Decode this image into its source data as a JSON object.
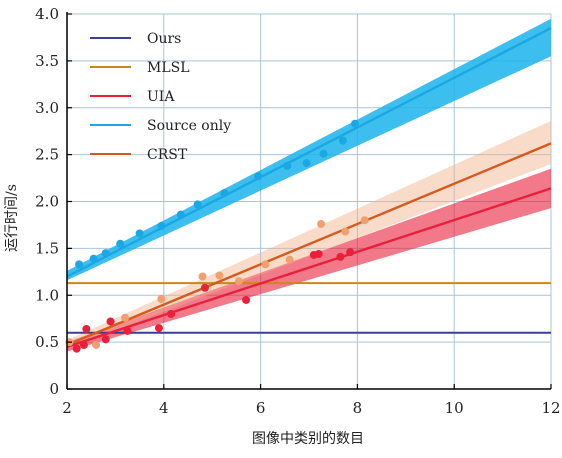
{
  "chart_data": {
    "type": "line",
    "xlabel": "图像中类别的数目",
    "ylabel": "运行时间/s",
    "xlim": [
      2,
      12
    ],
    "ylim": [
      0,
      4.0
    ],
    "x_ticks": [
      2,
      4,
      6,
      8,
      10,
      12
    ],
    "y_ticks": [
      0,
      0.5,
      1.0,
      1.5,
      2.0,
      2.5,
      3.0,
      3.5,
      4.0
    ],
    "x_tick_labels": [
      "2",
      "4",
      "6",
      "8",
      "10",
      "12"
    ],
    "y_tick_labels": [
      "0",
      "0.5",
      "1.0",
      "1.5",
      "2.0",
      "2.5",
      "3.0",
      "3.5",
      "4.0"
    ],
    "grid": true,
    "legend_position": "top-left",
    "series": [
      {
        "name": "Ours",
        "kind": "constant",
        "color": "#3a3f9a",
        "x": [
          2,
          12
        ],
        "y": [
          0.6,
          0.6
        ]
      },
      {
        "name": "MLSL",
        "kind": "constant",
        "color": "#c8881e",
        "x": [
          2,
          12
        ],
        "y": [
          1.13,
          1.13
        ]
      },
      {
        "name": "UIA",
        "kind": "regression",
        "color": "#e8203a",
        "band_color": "#e8203a",
        "fit": {
          "x": [
            2,
            12
          ],
          "y": [
            0.45,
            2.14
          ]
        },
        "band_upper": {
          "x": [
            2,
            12
          ],
          "y": [
            0.5,
            2.35
          ]
        },
        "band_lower": {
          "x": [
            2,
            12
          ],
          "y": [
            0.4,
            1.93
          ]
        },
        "points": {
          "x": [
            2.2,
            2.35,
            2.4,
            2.8,
            2.9,
            3.25,
            3.9,
            4.15,
            4.85,
            5.7,
            7.1,
            7.2,
            7.65,
            7.85
          ],
          "y": [
            0.43,
            0.47,
            0.64,
            0.53,
            0.72,
            0.62,
            0.65,
            0.8,
            1.08,
            0.95,
            1.43,
            1.44,
            1.41,
            1.46
          ]
        }
      },
      {
        "name": "Source only",
        "kind": "regression",
        "color": "#1aa8e4",
        "band_color": "#1ab4ec",
        "fit": {
          "x": [
            2,
            12
          ],
          "y": [
            1.2,
            3.85
          ]
        },
        "band_upper": {
          "x": [
            2,
            12
          ],
          "y": [
            1.26,
            3.95
          ]
        },
        "band_lower": {
          "x": [
            2,
            12
          ],
          "y": [
            1.16,
            3.55
          ]
        },
        "points": {
          "x": [
            2.25,
            2.55,
            2.8,
            3.1,
            3.5,
            3.95,
            4.35,
            4.7,
            5.25,
            5.95,
            6.55,
            6.95,
            7.3,
            7.7,
            7.95
          ],
          "y": [
            1.33,
            1.39,
            1.45,
            1.55,
            1.66,
            1.74,
            1.86,
            1.97,
            2.09,
            2.27,
            2.38,
            2.41,
            2.51,
            2.65,
            2.83
          ]
        }
      },
      {
        "name": "CRST",
        "kind": "regression",
        "color": "#d45a1e",
        "band_color": "#f2b08a",
        "fit": {
          "x": [
            2,
            12
          ],
          "y": [
            0.47,
            2.62
          ]
        },
        "band_upper": {
          "x": [
            2,
            12
          ],
          "y": [
            0.52,
            2.86
          ]
        },
        "band_lower": {
          "x": [
            2,
            12
          ],
          "y": [
            0.43,
            2.4
          ]
        },
        "points": {
          "x": [
            2.05,
            2.6,
            3.2,
            3.95,
            4.8,
            5.15,
            5.55,
            6.1,
            6.6,
            7.25,
            7.75,
            8.15
          ],
          "y": [
            0.5,
            0.47,
            0.76,
            0.96,
            1.2,
            1.21,
            1.15,
            1.33,
            1.38,
            1.76,
            1.68,
            1.8
          ]
        }
      }
    ]
  }
}
